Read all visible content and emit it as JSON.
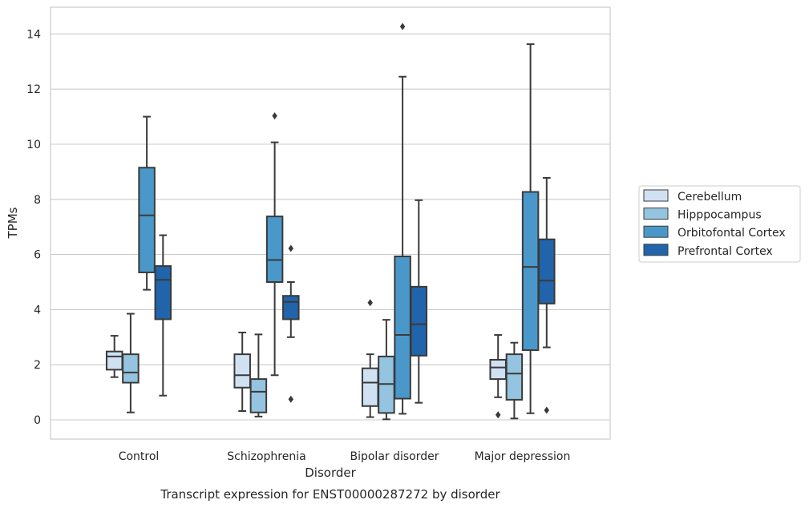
{
  "caption": "Transcript expression for ENST00000287272 by disorder",
  "chart_data": {
    "type": "box",
    "xlabel": "Disorder",
    "ylabel": "TPMs",
    "ylim": [
      -0.7,
      15
    ],
    "yticks": [
      0,
      2,
      4,
      6,
      8,
      10,
      12,
      14
    ],
    "grid": "horizontal",
    "legend_placement": "right-outside",
    "categories": [
      "Control",
      "Schizophrenia",
      "Bipolar disorder",
      "Major depression"
    ],
    "series": [
      {
        "name": "Cerebellum",
        "color": "#d0e1f2",
        "boxes": [
          {
            "whislo": 1.55,
            "q1": 1.82,
            "med": 2.3,
            "q3": 2.48,
            "whishi": 3.05,
            "fliers": []
          },
          {
            "whislo": 0.32,
            "q1": 1.17,
            "med": 1.62,
            "q3": 2.38,
            "whishi": 3.17,
            "fliers": []
          },
          {
            "whislo": 0.1,
            "q1": 0.5,
            "med": 1.35,
            "q3": 1.87,
            "whishi": 2.38,
            "fliers": [
              4.25
            ]
          },
          {
            "whislo": 0.82,
            "q1": 1.48,
            "med": 1.9,
            "q3": 2.18,
            "whishi": 3.08,
            "fliers": [
              0.18
            ]
          }
        ]
      },
      {
        "name": "Hipppocampus",
        "color": "#94c4df",
        "boxes": [
          {
            "whislo": 0.27,
            "q1": 1.35,
            "med": 1.72,
            "q3": 2.38,
            "whishi": 3.85,
            "fliers": []
          },
          {
            "whislo": 0.12,
            "q1": 0.27,
            "med": 1.02,
            "q3": 1.48,
            "whishi": 3.1,
            "fliers": []
          },
          {
            "whislo": 0.02,
            "q1": 0.25,
            "med": 1.3,
            "q3": 2.3,
            "whishi": 3.63,
            "fliers": []
          },
          {
            "whislo": 0.05,
            "q1": 0.73,
            "med": 1.68,
            "q3": 2.38,
            "whishi": 2.8,
            "fliers": []
          }
        ]
      },
      {
        "name": "Orbitofontal Cortex",
        "color": "#4a98c9",
        "boxes": [
          {
            "whislo": 4.72,
            "q1": 5.35,
            "med": 7.42,
            "q3": 9.15,
            "whishi": 11.0,
            "fliers": []
          },
          {
            "whislo": 1.62,
            "q1": 5.0,
            "med": 5.8,
            "q3": 7.38,
            "whishi": 10.07,
            "fliers": [
              11.03
            ]
          },
          {
            "whislo": 0.22,
            "q1": 0.77,
            "med": 3.08,
            "q3": 5.93,
            "whishi": 12.45,
            "fliers": [
              14.27
            ]
          },
          {
            "whislo": 0.24,
            "q1": 2.53,
            "med": 5.55,
            "q3": 8.27,
            "whishi": 13.63,
            "fliers": []
          }
        ]
      },
      {
        "name": "Prefrontal Cortex",
        "color": "#2164ab",
        "boxes": [
          {
            "whislo": 0.88,
            "q1": 3.65,
            "med": 5.08,
            "q3": 5.58,
            "whishi": 6.7,
            "fliers": []
          },
          {
            "whislo": 3.0,
            "q1": 3.65,
            "med": 4.28,
            "q3": 4.5,
            "whishi": 5.0,
            "fliers": [
              6.22,
              0.75
            ]
          },
          {
            "whislo": 0.62,
            "q1": 2.33,
            "med": 3.47,
            "q3": 4.83,
            "whishi": 7.97,
            "fliers": []
          },
          {
            "whislo": 2.63,
            "q1": 4.22,
            "med": 5.05,
            "q3": 6.55,
            "whishi": 8.78,
            "fliers": [
              0.35
            ]
          }
        ]
      }
    ]
  }
}
